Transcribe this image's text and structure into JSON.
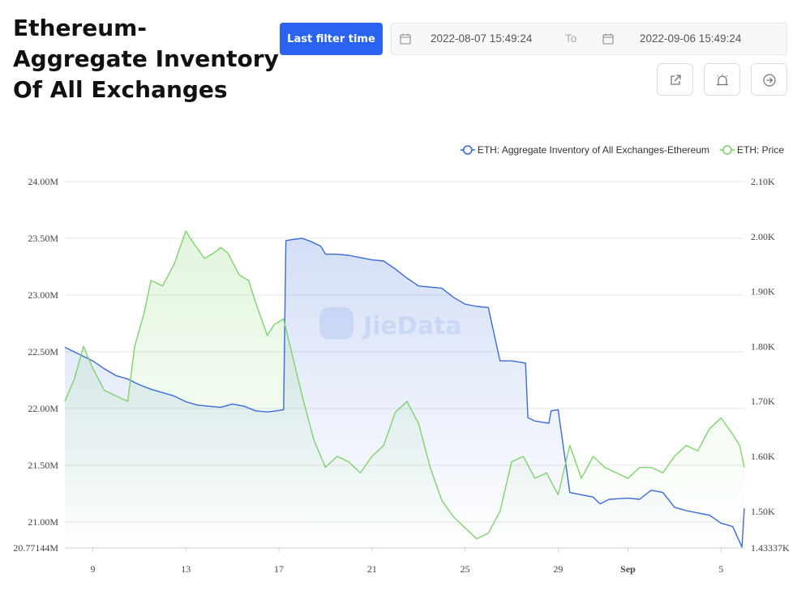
{
  "header": {
    "title": "Ethereum-Aggregate Inventory Of All Exchanges",
    "filter_button": "Last filter time",
    "date_from": "2022-08-07 15:49:24",
    "date_sep": "To",
    "date_to": "2022-09-06 15:49:24",
    "actions": [
      "share-icon",
      "alarm-icon",
      "arrow-right-circle-icon"
    ]
  },
  "colors": {
    "accent": "#2b63f1",
    "inventory": "#3a6bd8",
    "price": "#7ed36b"
  },
  "chart_data": {
    "type": "line",
    "watermark": "JieData",
    "x_ticks": [
      {
        "day": 2,
        "label": "9"
      },
      {
        "day": 6,
        "label": "13"
      },
      {
        "day": 10,
        "label": "17"
      },
      {
        "day": 14,
        "label": "21"
      },
      {
        "day": 18,
        "label": "25"
      },
      {
        "day": 22,
        "label": "29"
      },
      {
        "day": 25,
        "label": "Sep"
      },
      {
        "day": 29,
        "label": "5"
      }
    ],
    "x_range_days": [
      0.8,
      30
    ],
    "x_note": "day 0 = Aug 7",
    "left_axis": {
      "min": 20.77144,
      "max": 24.0,
      "ticks": [
        "24.00M",
        "23.50M",
        "23.00M",
        "22.50M",
        "22.00M",
        "21.50M",
        "21.00M",
        "20.77144M"
      ],
      "tick_values": [
        24.0,
        23.5,
        23.0,
        22.5,
        22.0,
        21.5,
        21.0,
        20.77144
      ]
    },
    "right_axis": {
      "min": 1.43337,
      "max": 2.1,
      "ticks": [
        "2.10K",
        "2.00K",
        "1.90K",
        "1.80K",
        "1.70K",
        "1.60K",
        "1.50K",
        "1.43337K"
      ],
      "tick_values": [
        2.1,
        2.0,
        1.9,
        1.8,
        1.7,
        1.6,
        1.5,
        1.43337
      ]
    },
    "series": [
      {
        "name": "ETH: Aggregate Inventory of All Exchanges-Ethereum",
        "axis": "left",
        "unit": "M",
        "x": [
          0.8,
          1.2,
          2.0,
          2.5,
          3.0,
          3.5,
          4.0,
          4.5,
          5.0,
          5.5,
          6.0,
          6.5,
          7.0,
          7.5,
          8.0,
          8.5,
          9.0,
          9.5,
          9.9,
          10.2,
          10.3,
          10.6,
          11.0,
          11.4,
          11.8,
          12.0,
          12.5,
          13.0,
          13.5,
          14.0,
          14.5,
          15.0,
          15.5,
          16.0,
          16.5,
          17.0,
          17.5,
          18.0,
          18.5,
          19.0,
          19.5,
          20.0,
          20.6,
          20.7,
          21.0,
          21.6,
          21.7,
          22.0,
          22.5,
          23.0,
          23.5,
          23.8,
          24.0,
          24.2,
          25.0,
          25.5,
          26.0,
          26.5,
          27.0,
          27.5,
          28.0,
          28.5,
          29.0,
          29.5,
          29.9,
          30.0
        ],
        "values": [
          22.54,
          22.5,
          22.42,
          22.35,
          22.29,
          22.26,
          22.21,
          22.17,
          22.14,
          22.11,
          22.06,
          22.03,
          22.02,
          22.01,
          22.04,
          22.02,
          21.98,
          21.97,
          21.98,
          21.99,
          23.48,
          23.49,
          23.5,
          23.47,
          23.43,
          23.36,
          23.36,
          23.35,
          23.33,
          23.31,
          23.3,
          23.23,
          23.15,
          23.08,
          23.07,
          23.06,
          22.98,
          22.92,
          22.9,
          22.89,
          22.42,
          22.42,
          22.4,
          21.92,
          21.89,
          21.87,
          21.98,
          21.99,
          21.26,
          21.24,
          21.22,
          21.16,
          21.18,
          21.2,
          21.21,
          21.2,
          21.28,
          21.26,
          21.13,
          21.1,
          21.08,
          21.06,
          20.99,
          20.96,
          20.78,
          21.12
        ]
      },
      {
        "name": "ETH: Price",
        "axis": "right",
        "unit": "K",
        "x": [
          0.8,
          1.2,
          1.6,
          2.0,
          2.5,
          3.0,
          3.5,
          3.8,
          4.2,
          4.5,
          5.0,
          5.5,
          6.0,
          6.3,
          6.8,
          7.2,
          7.5,
          7.8,
          8.3,
          8.7,
          9.0,
          9.5,
          9.8,
          10.2,
          10.6,
          11.0,
          11.5,
          12.0,
          12.5,
          13.0,
          13.5,
          14.0,
          14.5,
          15.0,
          15.5,
          16.0,
          16.5,
          17.0,
          17.5,
          18.0,
          18.5,
          19.0,
          19.5,
          20.0,
          20.5,
          21.0,
          21.5,
          22.0,
          22.5,
          23.0,
          23.5,
          24.0,
          24.5,
          25.0,
          25.5,
          26.0,
          26.5,
          27.0,
          27.5,
          28.0,
          28.5,
          29.0,
          29.5,
          29.8,
          30.0
        ],
        "values": [
          1.7,
          1.74,
          1.8,
          1.76,
          1.72,
          1.71,
          1.7,
          1.8,
          1.86,
          1.92,
          1.91,
          1.95,
          2.01,
          1.99,
          1.96,
          1.97,
          1.98,
          1.97,
          1.93,
          1.92,
          1.88,
          1.82,
          1.84,
          1.85,
          1.78,
          1.71,
          1.63,
          1.58,
          1.6,
          1.59,
          1.57,
          1.6,
          1.62,
          1.68,
          1.7,
          1.66,
          1.58,
          1.52,
          1.49,
          1.47,
          1.45,
          1.46,
          1.5,
          1.59,
          1.6,
          1.56,
          1.57,
          1.53,
          1.62,
          1.56,
          1.6,
          1.58,
          1.57,
          1.56,
          1.58,
          1.58,
          1.57,
          1.6,
          1.62,
          1.61,
          1.65,
          1.67,
          1.64,
          1.62,
          1.58
        ]
      }
    ]
  }
}
